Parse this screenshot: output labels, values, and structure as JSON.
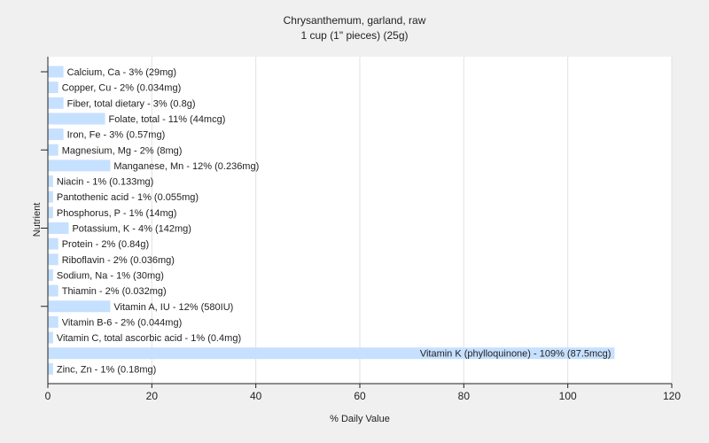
{
  "chart_data": {
    "type": "bar",
    "orientation": "horizontal",
    "title": "Chrysanthemum, garland, raw",
    "subtitle": "1 cup (1\" pieces) (25g)",
    "xlabel": "% Daily Value",
    "ylabel": "Nutrient",
    "xlim": [
      0,
      120
    ],
    "xticks": [
      0,
      20,
      40,
      60,
      80,
      100,
      120
    ],
    "grid": true,
    "bar_color": "#c6e0ff",
    "categories": [
      "Calcium, Ca",
      "Copper, Cu",
      "Fiber, total dietary",
      "Folate, total",
      "Iron, Fe",
      "Magnesium, Mg",
      "Manganese, Mn",
      "Niacin",
      "Pantothenic acid",
      "Phosphorus, P",
      "Potassium, K",
      "Protein",
      "Riboflavin",
      "Sodium, Na",
      "Thiamin",
      "Vitamin A, IU",
      "Vitamin B-6",
      "Vitamin C, total ascorbic acid",
      "Vitamin K (phylloquinone)",
      "Zinc, Zn"
    ],
    "values": [
      3,
      2,
      3,
      11,
      3,
      2,
      12,
      1,
      1,
      1,
      4,
      2,
      2,
      1,
      2,
      12,
      2,
      1,
      109,
      1
    ],
    "labels": [
      "Calcium, Ca - 3% (29mg)",
      "Copper, Cu - 2% (0.034mg)",
      "Fiber, total dietary - 3% (0.8g)",
      "Folate, total - 11% (44mcg)",
      "Iron, Fe - 3% (0.57mg)",
      "Magnesium, Mg - 2% (8mg)",
      "Manganese, Mn - 12% (0.236mg)",
      "Niacin - 1% (0.133mg)",
      "Pantothenic acid - 1% (0.055mg)",
      "Phosphorus, P - 1% (14mg)",
      "Potassium, K - 4% (142mg)",
      "Protein - 2% (0.84g)",
      "Riboflavin - 2% (0.036mg)",
      "Sodium, Na - 1% (30mg)",
      "Thiamin - 2% (0.032mg)",
      "Vitamin A, IU - 12% (580IU)",
      "Vitamin B-6 - 2% (0.044mg)",
      "Vitamin C, total ascorbic acid - 1% (0.4mg)",
      "Vitamin K (phylloquinone) - 109% (87.5mcg)",
      "Zinc, Zn - 1% (0.18mg)"
    ]
  }
}
